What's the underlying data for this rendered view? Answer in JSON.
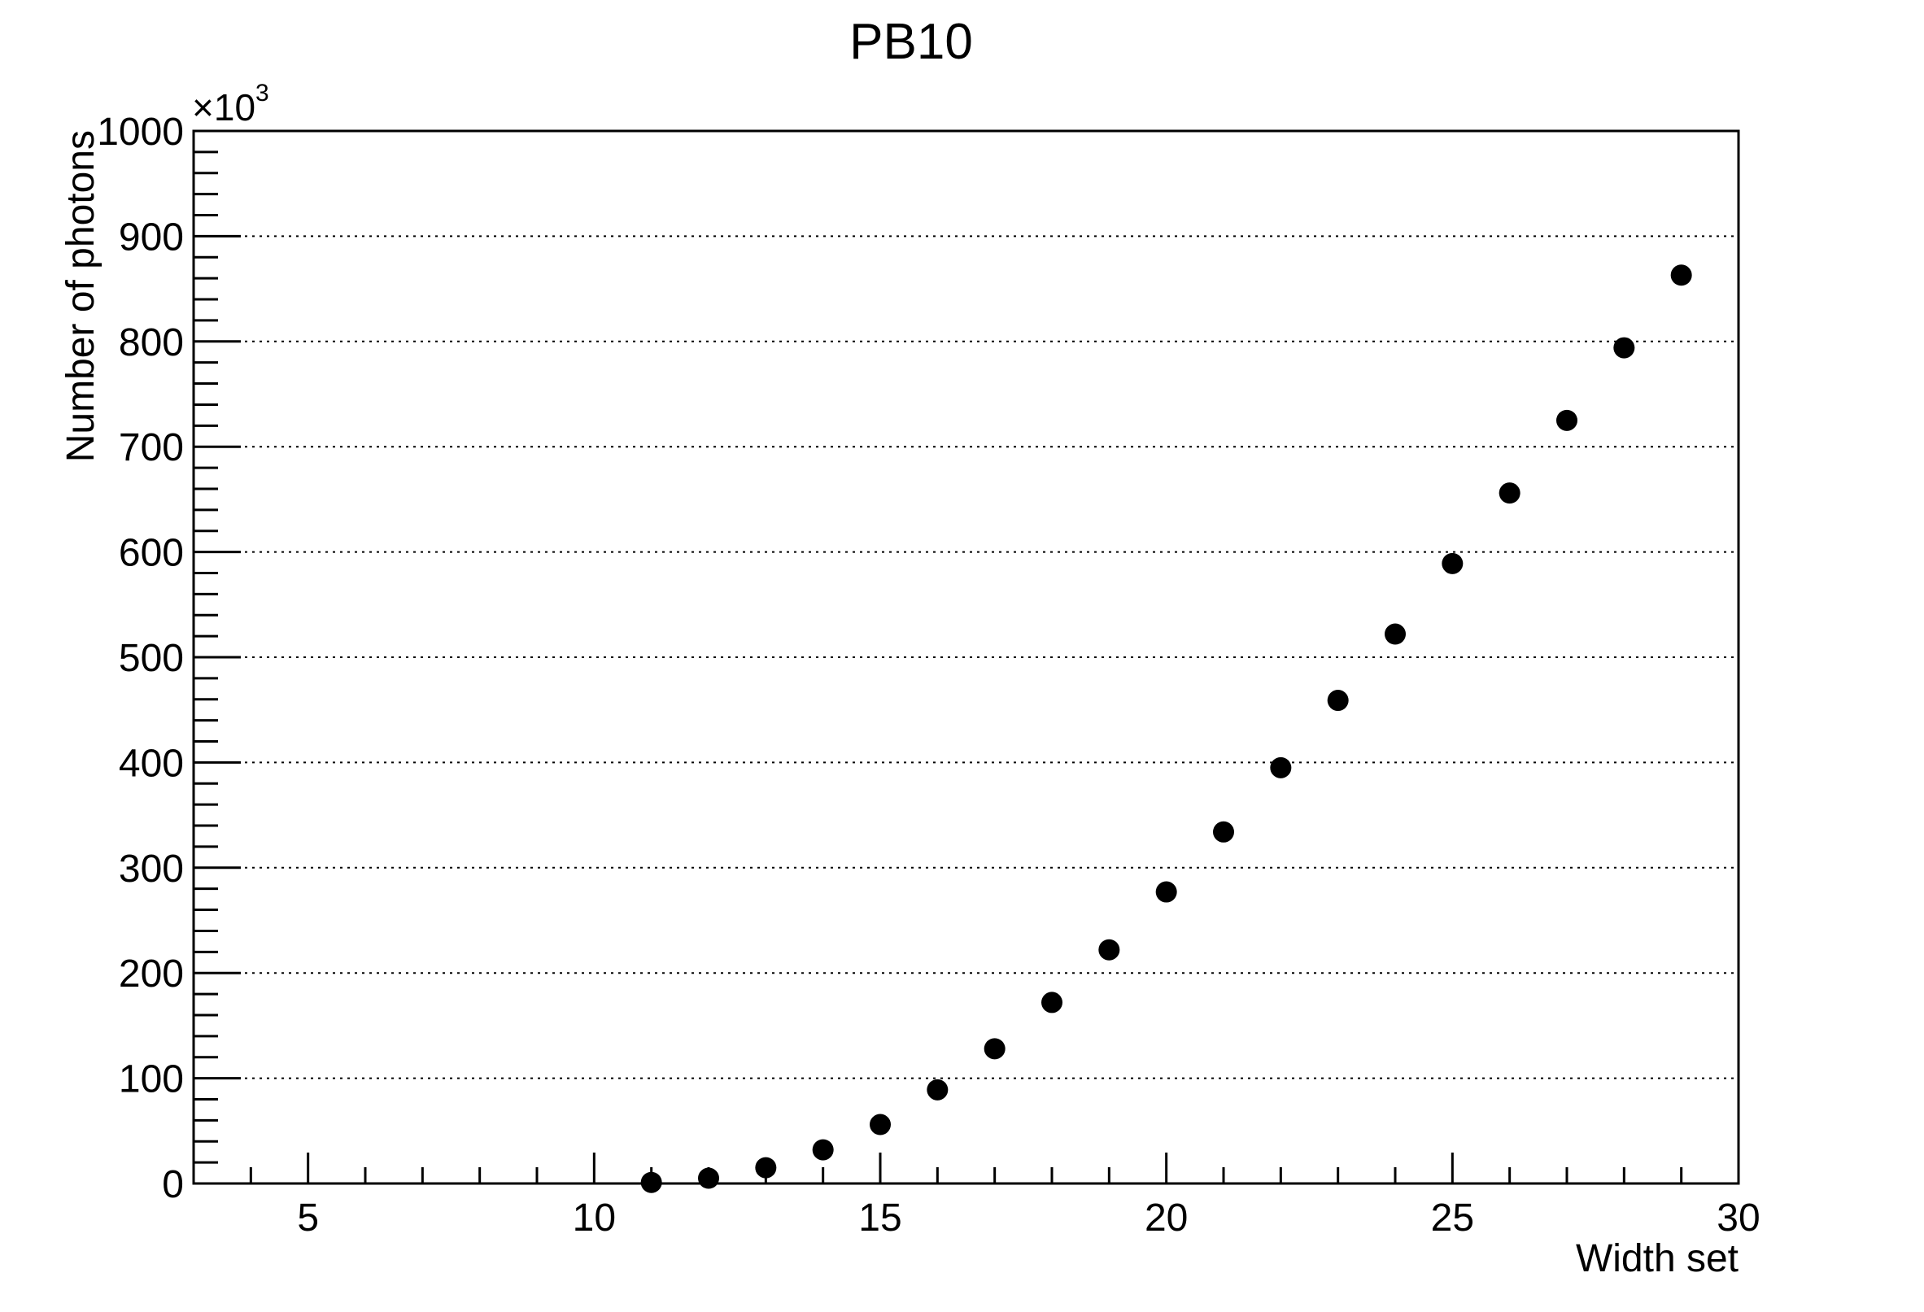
{
  "chart_data": {
    "type": "scatter",
    "title": "PB10",
    "xlabel": "Width set",
    "ylabel": "Number of photons",
    "y_multiplier": "×10",
    "y_multiplier_exponent": "3",
    "xlim": [
      3,
      30
    ],
    "ylim": [
      0,
      1000
    ],
    "x_ticks": [
      5,
      10,
      15,
      20,
      25,
      30
    ],
    "y_ticks": [
      0,
      100,
      200,
      300,
      400,
      500,
      600,
      700,
      800,
      900,
      1000
    ],
    "grid": "horizontal-dotted",
    "marker_color": "#000000",
    "series": [
      {
        "x": [
          11,
          12,
          13,
          14,
          15,
          16,
          17,
          18,
          19,
          20,
          21,
          22,
          23,
          24,
          25,
          26,
          27,
          28,
          29
        ],
        "y": [
          1,
          5,
          15,
          32,
          56,
          89,
          128,
          172,
          222,
          277,
          334,
          395,
          459,
          522,
          589,
          656,
          725,
          794,
          863
        ]
      }
    ]
  }
}
